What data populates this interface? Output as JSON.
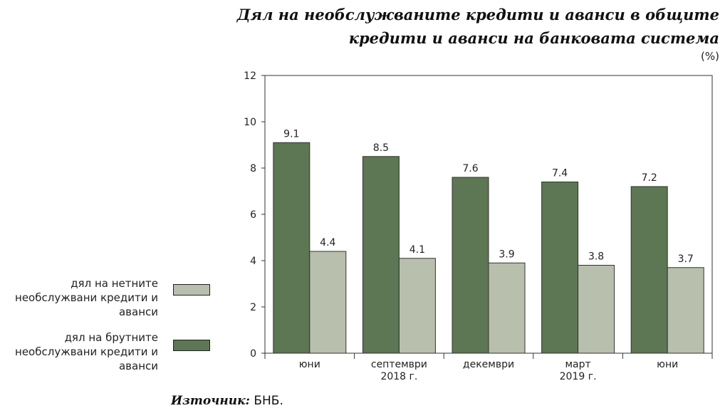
{
  "title": "Дял на необслужваните кредити и аванси в общите кредити и аванси на банковата система",
  "unit": "(%)",
  "source": {
    "label": "Източник:",
    "value": "БНБ."
  },
  "legend": [
    {
      "label": "дял на нетните необслужвани кредити и аванси",
      "color": "#b8bfad"
    },
    {
      "label": "дял на брутните необслужвани кредити и аванси",
      "color": "#5d7653"
    }
  ],
  "chart_data": {
    "type": "bar",
    "categories": [
      "юни",
      "септември",
      "декември",
      "март",
      "юни"
    ],
    "year_labels": [
      {
        "text": "2018 г.",
        "under_category": 1
      },
      {
        "text": "2019 г.",
        "under_category": 3
      }
    ],
    "series": [
      {
        "name": "дял на брутните необслужвани кредити и аванси",
        "color": "#5d7653",
        "values": [
          9.1,
          8.5,
          7.6,
          7.4,
          7.2
        ]
      },
      {
        "name": "дял на нетните необслужвани кредити и аванси",
        "color": "#b8bfad",
        "values": [
          4.4,
          4.1,
          3.9,
          3.8,
          3.7
        ]
      }
    ],
    "ylim": [
      0,
      12
    ],
    "yticks": [
      0,
      2,
      4,
      6,
      8,
      10,
      12
    ],
    "grid": false,
    "legend_position": "left"
  }
}
